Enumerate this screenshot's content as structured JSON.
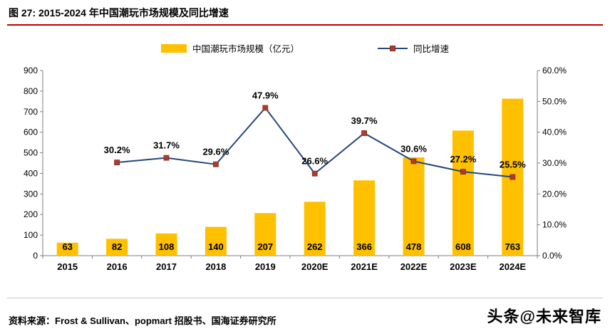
{
  "header": {
    "title": "图 27:  2015-2024 年中国潮玩市场规模及同比增速"
  },
  "style": {
    "title_underline": "#C00000",
    "bar_color": "#FFC000",
    "line_color": "#25477B",
    "marker_color": "#B03A2E",
    "axis_color": "#7f7f7f",
    "label_color": "#000000"
  },
  "chart_data": {
    "type": "bar+line",
    "title": "2015-2024 年中国潮玩市场规模及同比增速",
    "categories": [
      "2015",
      "2016",
      "2017",
      "2018",
      "2019",
      "2020E",
      "2021E",
      "2022E",
      "2023E",
      "2024E"
    ],
    "series": [
      {
        "name": "中国潮玩市场规模（亿元）",
        "type": "bar",
        "axis": "left",
        "values": [
          63,
          82,
          108,
          140,
          207,
          262,
          366,
          478,
          608,
          763
        ],
        "color": "#FFC000"
      },
      {
        "name": "同比增速",
        "type": "line",
        "axis": "right",
        "values": [
          null,
          30.2,
          31.7,
          29.6,
          47.9,
          26.6,
          39.7,
          30.6,
          27.2,
          25.5
        ],
        "color": "#25477B",
        "marker_color": "#B03A2E"
      }
    ],
    "bar_labels": [
      "63",
      "82",
      "108",
      "140",
      "207",
      "262",
      "366",
      "478",
      "608",
      "763"
    ],
    "growth_labels": [
      "",
      "30.2%",
      "31.7%",
      "29.6%",
      "47.9%",
      "26.6%",
      "39.7%",
      "30.6%",
      "27.2%",
      "25.5%"
    ],
    "left_axis": {
      "min": 0,
      "max": 900,
      "step": 100,
      "ticks": [
        "0",
        "100",
        "200",
        "300",
        "400",
        "500",
        "600",
        "700",
        "800",
        "900"
      ]
    },
    "right_axis": {
      "min": 0,
      "max": 60,
      "step": 10,
      "ticks": [
        "0.0%",
        "10.0%",
        "20.0%",
        "30.0%",
        "40.0%",
        "50.0%",
        "60.0%"
      ]
    },
    "grid": false,
    "legend_position": "top"
  },
  "footer": {
    "source": "资料来源：Frost & Sullivan、popmart 招股书、国海证券研究所",
    "watermark": "头条@未来智库"
  }
}
